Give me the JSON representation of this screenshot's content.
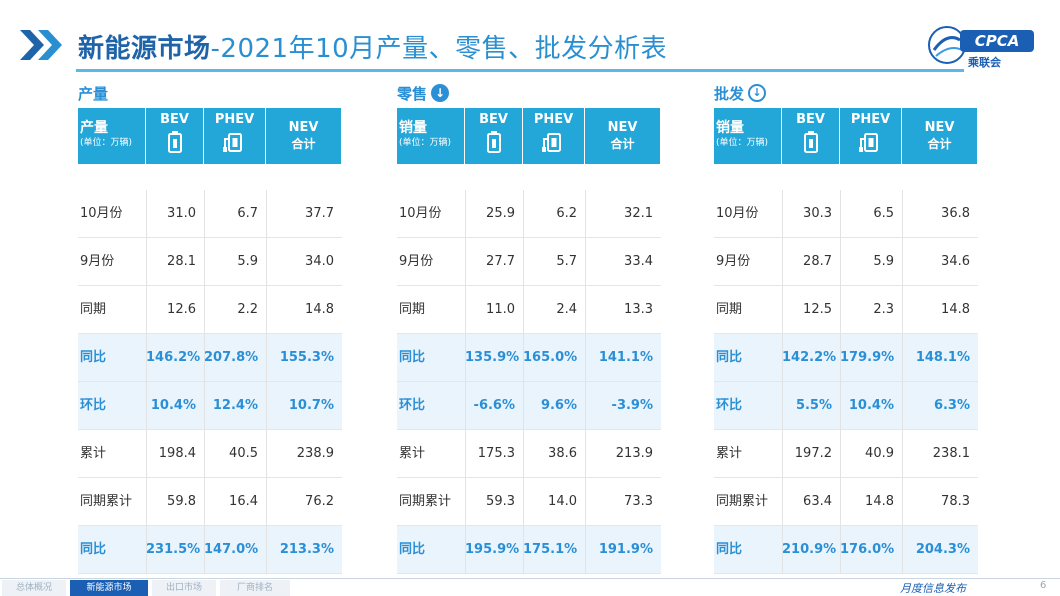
{
  "header": {
    "title_main": "新能源市场",
    "title_rest": "-2021年10月产量、零售、批发分析表",
    "logo_text": "CPCA",
    "logo_sub": "乘联会"
  },
  "columns": {
    "bev": "BEV",
    "phev": "PHEV",
    "nev_line1": "NEV",
    "nev_line2": "合计",
    "unit": "(单位：万辆)"
  },
  "sections": [
    {
      "label": "产量",
      "first_header": "产量",
      "rows": [
        {
          "label": "10月份",
          "bev": "31.0",
          "phev": "6.7",
          "nev": "37.7",
          "highlight": false
        },
        {
          "label": "9月份",
          "bev": "28.1",
          "phev": "5.9",
          "nev": "34.0",
          "highlight": false
        },
        {
          "label": "同期",
          "bev": "12.6",
          "phev": "2.2",
          "nev": "14.8",
          "highlight": false
        },
        {
          "label": "同比",
          "bev": "146.2%",
          "phev": "207.8%",
          "nev": "155.3%",
          "highlight": true
        },
        {
          "label": "环比",
          "bev": "10.4%",
          "phev": "12.4%",
          "nev": "10.7%",
          "highlight": true
        },
        {
          "label": "累计",
          "bev": "198.4",
          "phev": "40.5",
          "nev": "238.9",
          "highlight": false
        },
        {
          "label": "同期累计",
          "bev": "59.8",
          "phev": "16.4",
          "nev": "76.2",
          "highlight": false
        },
        {
          "label": "同比",
          "bev": "231.5%",
          "phev": "147.0%",
          "nev": "213.3%",
          "highlight": true
        }
      ]
    },
    {
      "label": "零售",
      "first_header": "销量",
      "rows": [
        {
          "label": "10月份",
          "bev": "25.9",
          "phev": "6.2",
          "nev": "32.1",
          "highlight": false
        },
        {
          "label": "9月份",
          "bev": "27.7",
          "phev": "5.7",
          "nev": "33.4",
          "highlight": false
        },
        {
          "label": "同期",
          "bev": "11.0",
          "phev": "2.4",
          "nev": "13.3",
          "highlight": false
        },
        {
          "label": "同比",
          "bev": "135.9%",
          "phev": "165.0%",
          "nev": "141.1%",
          "highlight": true
        },
        {
          "label": "环比",
          "bev": "-6.6%",
          "phev": "9.6%",
          "nev": "-3.9%",
          "highlight": true
        },
        {
          "label": "累计",
          "bev": "175.3",
          "phev": "38.6",
          "nev": "213.9",
          "highlight": false
        },
        {
          "label": "同期累计",
          "bev": "59.3",
          "phev": "14.0",
          "nev": "73.3",
          "highlight": false
        },
        {
          "label": "同比",
          "bev": "195.9%",
          "phev": "175.1%",
          "nev": "191.9%",
          "highlight": true
        }
      ]
    },
    {
      "label": "批发",
      "first_header": "销量",
      "rows": [
        {
          "label": "10月份",
          "bev": "30.3",
          "phev": "6.5",
          "nev": "36.8",
          "highlight": false
        },
        {
          "label": "9月份",
          "bev": "28.7",
          "phev": "5.9",
          "nev": "34.6",
          "highlight": false
        },
        {
          "label": "同期",
          "bev": "12.5",
          "phev": "2.3",
          "nev": "14.8",
          "highlight": false
        },
        {
          "label": "同比",
          "bev": "142.2%",
          "phev": "179.9%",
          "nev": "148.1%",
          "highlight": true
        },
        {
          "label": "环比",
          "bev": "5.5%",
          "phev": "10.4%",
          "nev": "6.3%",
          "highlight": true
        },
        {
          "label": "累计",
          "bev": "197.2",
          "phev": "40.9",
          "nev": "238.1",
          "highlight": false
        },
        {
          "label": "同期累计",
          "bev": "63.4",
          "phev": "14.8",
          "nev": "78.3",
          "highlight": false
        },
        {
          "label": "同比",
          "bev": "210.9%",
          "phev": "176.0%",
          "nev": "204.3%",
          "highlight": true
        }
      ]
    }
  ],
  "footer": {
    "tabs": [
      "总体概况",
      "新能源市场",
      "出口市场",
      "厂商排名"
    ],
    "active_tab": 1,
    "slogan": "月度信息发布",
    "page": "6"
  },
  "colors": {
    "header_bg": "#23a6d8",
    "accent": "#2b8fd6",
    "title_dark": "#1f63a8",
    "highlight_row": "#eaf4fc"
  }
}
